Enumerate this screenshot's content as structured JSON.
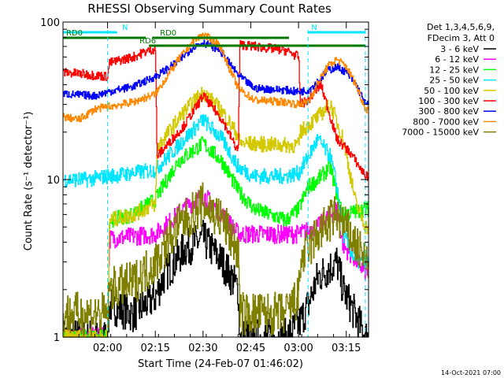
{
  "chart_data": {
    "type": "line",
    "title": "RHESSI Observing Summary Count Rates",
    "xlabel": "Start Time (24-Feb-07 01:46:02)",
    "ylabel": "Count Rate (s⁻¹ detector⁻¹)",
    "yscale": "log",
    "ylim": [
      1,
      100
    ],
    "xlim_minutes": [
      0,
      96
    ],
    "x_ticks": [
      {
        "label": "02:00",
        "min": 14
      },
      {
        "label": "02:15",
        "min": 29
      },
      {
        "label": "02:30",
        "min": 44
      },
      {
        "label": "02:45",
        "min": 59
      },
      {
        "label": "03:00",
        "min": 74
      },
      {
        "label": "03:15",
        "min": 89
      }
    ],
    "y_ticks": [
      {
        "label": "1",
        "value": 1
      },
      {
        "label": "10",
        "value": 10
      },
      {
        "label": "100",
        "value": 100
      }
    ],
    "legend": {
      "position": "top-right",
      "header": [
        "Det 1,3,4,5,6,9,",
        "FDecim 3, Att 0"
      ]
    },
    "flags": [
      {
        "label": "N",
        "color": "#00e5ff",
        "start": 0,
        "end": 17
      },
      {
        "label": "N",
        "color": "#00e5ff",
        "start": 77,
        "end": 95
      },
      {
        "label": "RD0",
        "color": "#007a00",
        "start": 28,
        "end": 71
      },
      {
        "label": "RD0",
        "color": "#007a00",
        "start": 0,
        "end": 26
      },
      {
        "label": "RD6",
        "color": "#007a00",
        "start": 27,
        "end": 95
      }
    ],
    "footer_stamp": "14-Oct-2021 07:00",
    "series": [
      {
        "name": "3 - 6 keV",
        "color": "#000000",
        "noise": 0.12,
        "x": [
          0,
          14,
          14.5,
          22,
          29,
          32,
          38,
          44,
          50,
          55,
          55.5,
          70,
          74,
          77,
          80,
          86,
          88,
          95
        ],
        "y": [
          1,
          1,
          1.6,
          1.4,
          1.8,
          2.5,
          3.6,
          4.2,
          3.0,
          2.0,
          1,
          1,
          1.2,
          1.6,
          2.4,
          3.0,
          2.0,
          1
        ]
      },
      {
        "name": "6 - 12 keV",
        "color": "#ff00ff",
        "noise": 0.06,
        "x": [
          0,
          14,
          14.5,
          29,
          38,
          44,
          50,
          55,
          70,
          74,
          80,
          86,
          88,
          95
        ],
        "y": [
          1,
          1,
          4.2,
          4.5,
          6.5,
          8.0,
          6.0,
          4.5,
          4.5,
          4.5,
          5.0,
          6.5,
          3.8,
          2.6
        ]
      },
      {
        "name": "12 - 25 keV",
        "color": "#00ff00",
        "noise": 0.05,
        "x": [
          0,
          14,
          14.5,
          22,
          29,
          36,
          44,
          50,
          55,
          60,
          70,
          74,
          77,
          80,
          84,
          86,
          88,
          95
        ],
        "y": [
          1,
          1,
          5.5,
          6.0,
          7.5,
          13,
          17,
          13,
          8.5,
          6.5,
          5.5,
          6.5,
          9,
          10,
          12,
          8,
          6,
          6.5
        ]
      },
      {
        "name": "25 - 50 keV",
        "color": "#00e5ff",
        "noise": 0.05,
        "x": [
          0,
          8,
          14,
          14.5,
          22,
          29,
          38,
          44,
          50,
          55,
          60,
          70,
          74,
          77,
          80,
          84,
          86,
          88,
          92,
          95
        ],
        "y": [
          10,
          10,
          10.5,
          10.5,
          11,
          11.5,
          18,
          24,
          18,
          12,
          10.5,
          10.5,
          11,
          14,
          18,
          14,
          9,
          4.5,
          3,
          3
        ]
      },
      {
        "name": "50 - 100 keV",
        "color": "#d4c800",
        "noise": 0.05,
        "x": [
          0,
          14,
          14.5,
          22,
          29,
          29.5,
          38,
          44,
          50,
          55,
          55.5,
          70,
          74,
          74.5,
          80,
          84,
          88,
          92,
          95
        ],
        "y": [
          1,
          1,
          5.5,
          6.0,
          7.0,
          16,
          27,
          36,
          27,
          19,
          17,
          16.5,
          16.5,
          20,
          25,
          30,
          18,
          7,
          5
        ]
      },
      {
        "name": "100 - 300 keV",
        "color": "#ff0000",
        "noise": 0.03,
        "x": [
          0,
          10,
          14,
          14.5,
          22,
          26,
          29,
          29.5,
          38,
          44,
          50,
          55,
          55.5,
          70,
          74,
          74.5,
          77,
          81,
          86,
          90,
          95
        ],
        "y": [
          48,
          46,
          45,
          55,
          60,
          65,
          68,
          14,
          22,
          34,
          24,
          15,
          72,
          66,
          60,
          30,
          32,
          40,
          18,
          15,
          10.5
        ]
      },
      {
        "name": "300 - 800 keV",
        "color": "#0000ff",
        "noise": 0.025,
        "x": [
          0,
          10,
          14,
          22,
          29,
          36,
          41,
          44,
          49,
          55,
          60,
          70,
          74,
          77,
          80,
          83,
          86,
          89,
          92,
          95
        ],
        "y": [
          35,
          34,
          36,
          39,
          45,
          56,
          70,
          74,
          67,
          46,
          38,
          37,
          36,
          37,
          42,
          49,
          52,
          48,
          40,
          30
        ]
      },
      {
        "name": "800 - 7000 keV",
        "color": "#ff8800",
        "noise": 0.025,
        "x": [
          0,
          5,
          10,
          14,
          22,
          29,
          36,
          41,
          44,
          49,
          55,
          60,
          70,
          74,
          77,
          80,
          83,
          86,
          89,
          92,
          95
        ],
        "y": [
          25,
          24,
          28,
          29,
          31,
          35,
          57,
          76,
          83,
          72,
          38,
          32,
          31,
          30,
          31,
          41,
          52,
          58,
          52,
          40,
          28
        ]
      },
      {
        "name": "7000 - 15000 keV",
        "color": "#808000",
        "noise": 0.14,
        "x": [
          0,
          14,
          14.5,
          22,
          29,
          36,
          44,
          50,
          55,
          55.5,
          70,
          74,
          74.5,
          80,
          86,
          90,
          95
        ],
        "y": [
          1.4,
          1.4,
          2.0,
          2.2,
          3.0,
          5.0,
          7.0,
          5.5,
          3.5,
          1.4,
          1.4,
          1.8,
          3.0,
          4.5,
          6.0,
          4.5,
          3.0
        ]
      }
    ]
  }
}
